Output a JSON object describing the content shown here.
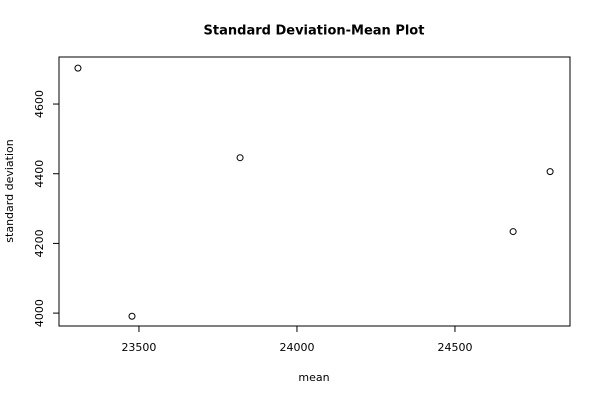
{
  "chart_data": {
    "type": "scatter",
    "title": "Standard Deviation-Mean Plot",
    "x_label": "mean",
    "y_label": "standard deviation",
    "x": [
      23307,
      23478,
      23820,
      24684,
      24801
    ],
    "values": [
      4703,
      3991,
      4446,
      4234,
      4406
    ],
    "color": "#000000",
    "xlim": [
      23247,
      24864
    ],
    "xticks": [
      23500,
      24000,
      24500
    ],
    "ylim": [
      3963,
      4735
    ],
    "yticks": [
      4000,
      4200,
      4400,
      4600
    ]
  }
}
